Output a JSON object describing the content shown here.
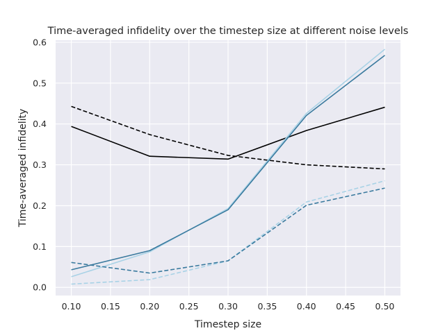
{
  "chart_data": {
    "type": "line",
    "title": "Time-averaged infidelity over the timestep size at different noise levels",
    "xlabel": "Timestep size",
    "ylabel": "Time-averaged infidelity",
    "xlim": [
      0.08,
      0.52
    ],
    "ylim": [
      -0.02,
      0.605
    ],
    "xticks": [
      "0.10",
      "0.15",
      "0.20",
      "0.25",
      "0.30",
      "0.35",
      "0.40",
      "0.45",
      "0.50"
    ],
    "yticks": [
      "0.0",
      "0.1",
      "0.2",
      "0.3",
      "0.4",
      "0.5",
      "0.6"
    ],
    "grid": true,
    "background": "#eaeaf2",
    "x": [
      0.1,
      0.2,
      0.3,
      0.4,
      0.5
    ],
    "series": [
      {
        "color": "#000000",
        "dash": "solid",
        "values": [
          0.394,
          0.321,
          0.314,
          0.384,
          0.441
        ]
      },
      {
        "color": "#000000",
        "dash": "dashed",
        "values": [
          0.443,
          0.374,
          0.323,
          0.3,
          0.29
        ]
      },
      {
        "color": "#a8d2e6",
        "dash": "solid",
        "values": [
          0.026,
          0.087,
          0.193,
          0.426,
          0.583
        ]
      },
      {
        "color": "#3a7a9e",
        "dash": "solid",
        "values": [
          0.043,
          0.09,
          0.19,
          0.421,
          0.568
        ]
      },
      {
        "color": "#a8d2e6",
        "dash": "dashed",
        "values": [
          0.008,
          0.019,
          0.065,
          0.209,
          0.261
        ]
      },
      {
        "color": "#3a7a9e",
        "dash": "dashed",
        "values": [
          0.061,
          0.035,
          0.065,
          0.201,
          0.243
        ]
      }
    ]
  }
}
